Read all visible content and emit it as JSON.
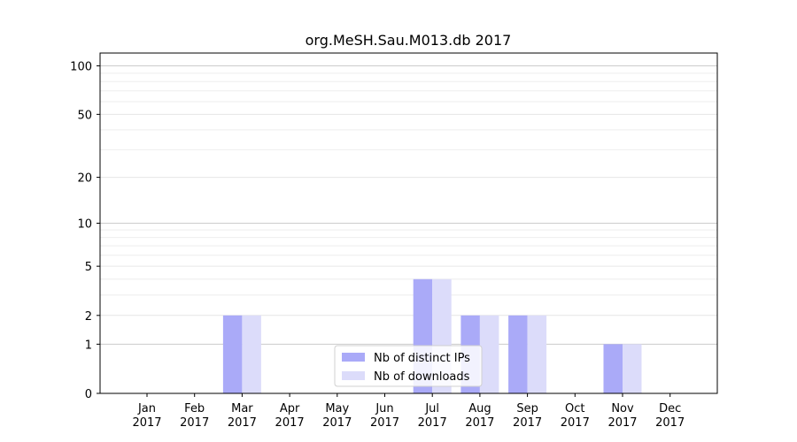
{
  "chart_data": {
    "type": "bar",
    "title": "org.MeSH.Sau.M013.db 2017",
    "xlabel": "",
    "ylabel": "",
    "y_scale": "log(1+y)",
    "ylim": [
      0,
      120
    ],
    "y_ticks": [
      0,
      1,
      2,
      5,
      10,
      20,
      50,
      100
    ],
    "grid": true,
    "legend_position": "bottom-center",
    "categories": [
      [
        "Jan",
        "2017"
      ],
      [
        "Feb",
        "2017"
      ],
      [
        "Mar",
        "2017"
      ],
      [
        "Apr",
        "2017"
      ],
      [
        "May",
        "2017"
      ],
      [
        "Jun",
        "2017"
      ],
      [
        "Jul",
        "2017"
      ],
      [
        "Aug",
        "2017"
      ],
      [
        "Sep",
        "2017"
      ],
      [
        "Oct",
        "2017"
      ],
      [
        "Nov",
        "2017"
      ],
      [
        "Dec",
        "2017"
      ]
    ],
    "series": [
      {
        "name": "Nb of distinct IPs",
        "color": "#aaaaf8",
        "values": [
          0,
          0,
          2,
          0,
          0,
          0,
          4,
          2,
          2,
          0,
          1,
          0
        ]
      },
      {
        "name": "Nb of downloads",
        "color": "#dcdcfa",
        "values": [
          0,
          0,
          2,
          0,
          0,
          0,
          4,
          2,
          2,
          0,
          1,
          0
        ]
      }
    ]
  }
}
